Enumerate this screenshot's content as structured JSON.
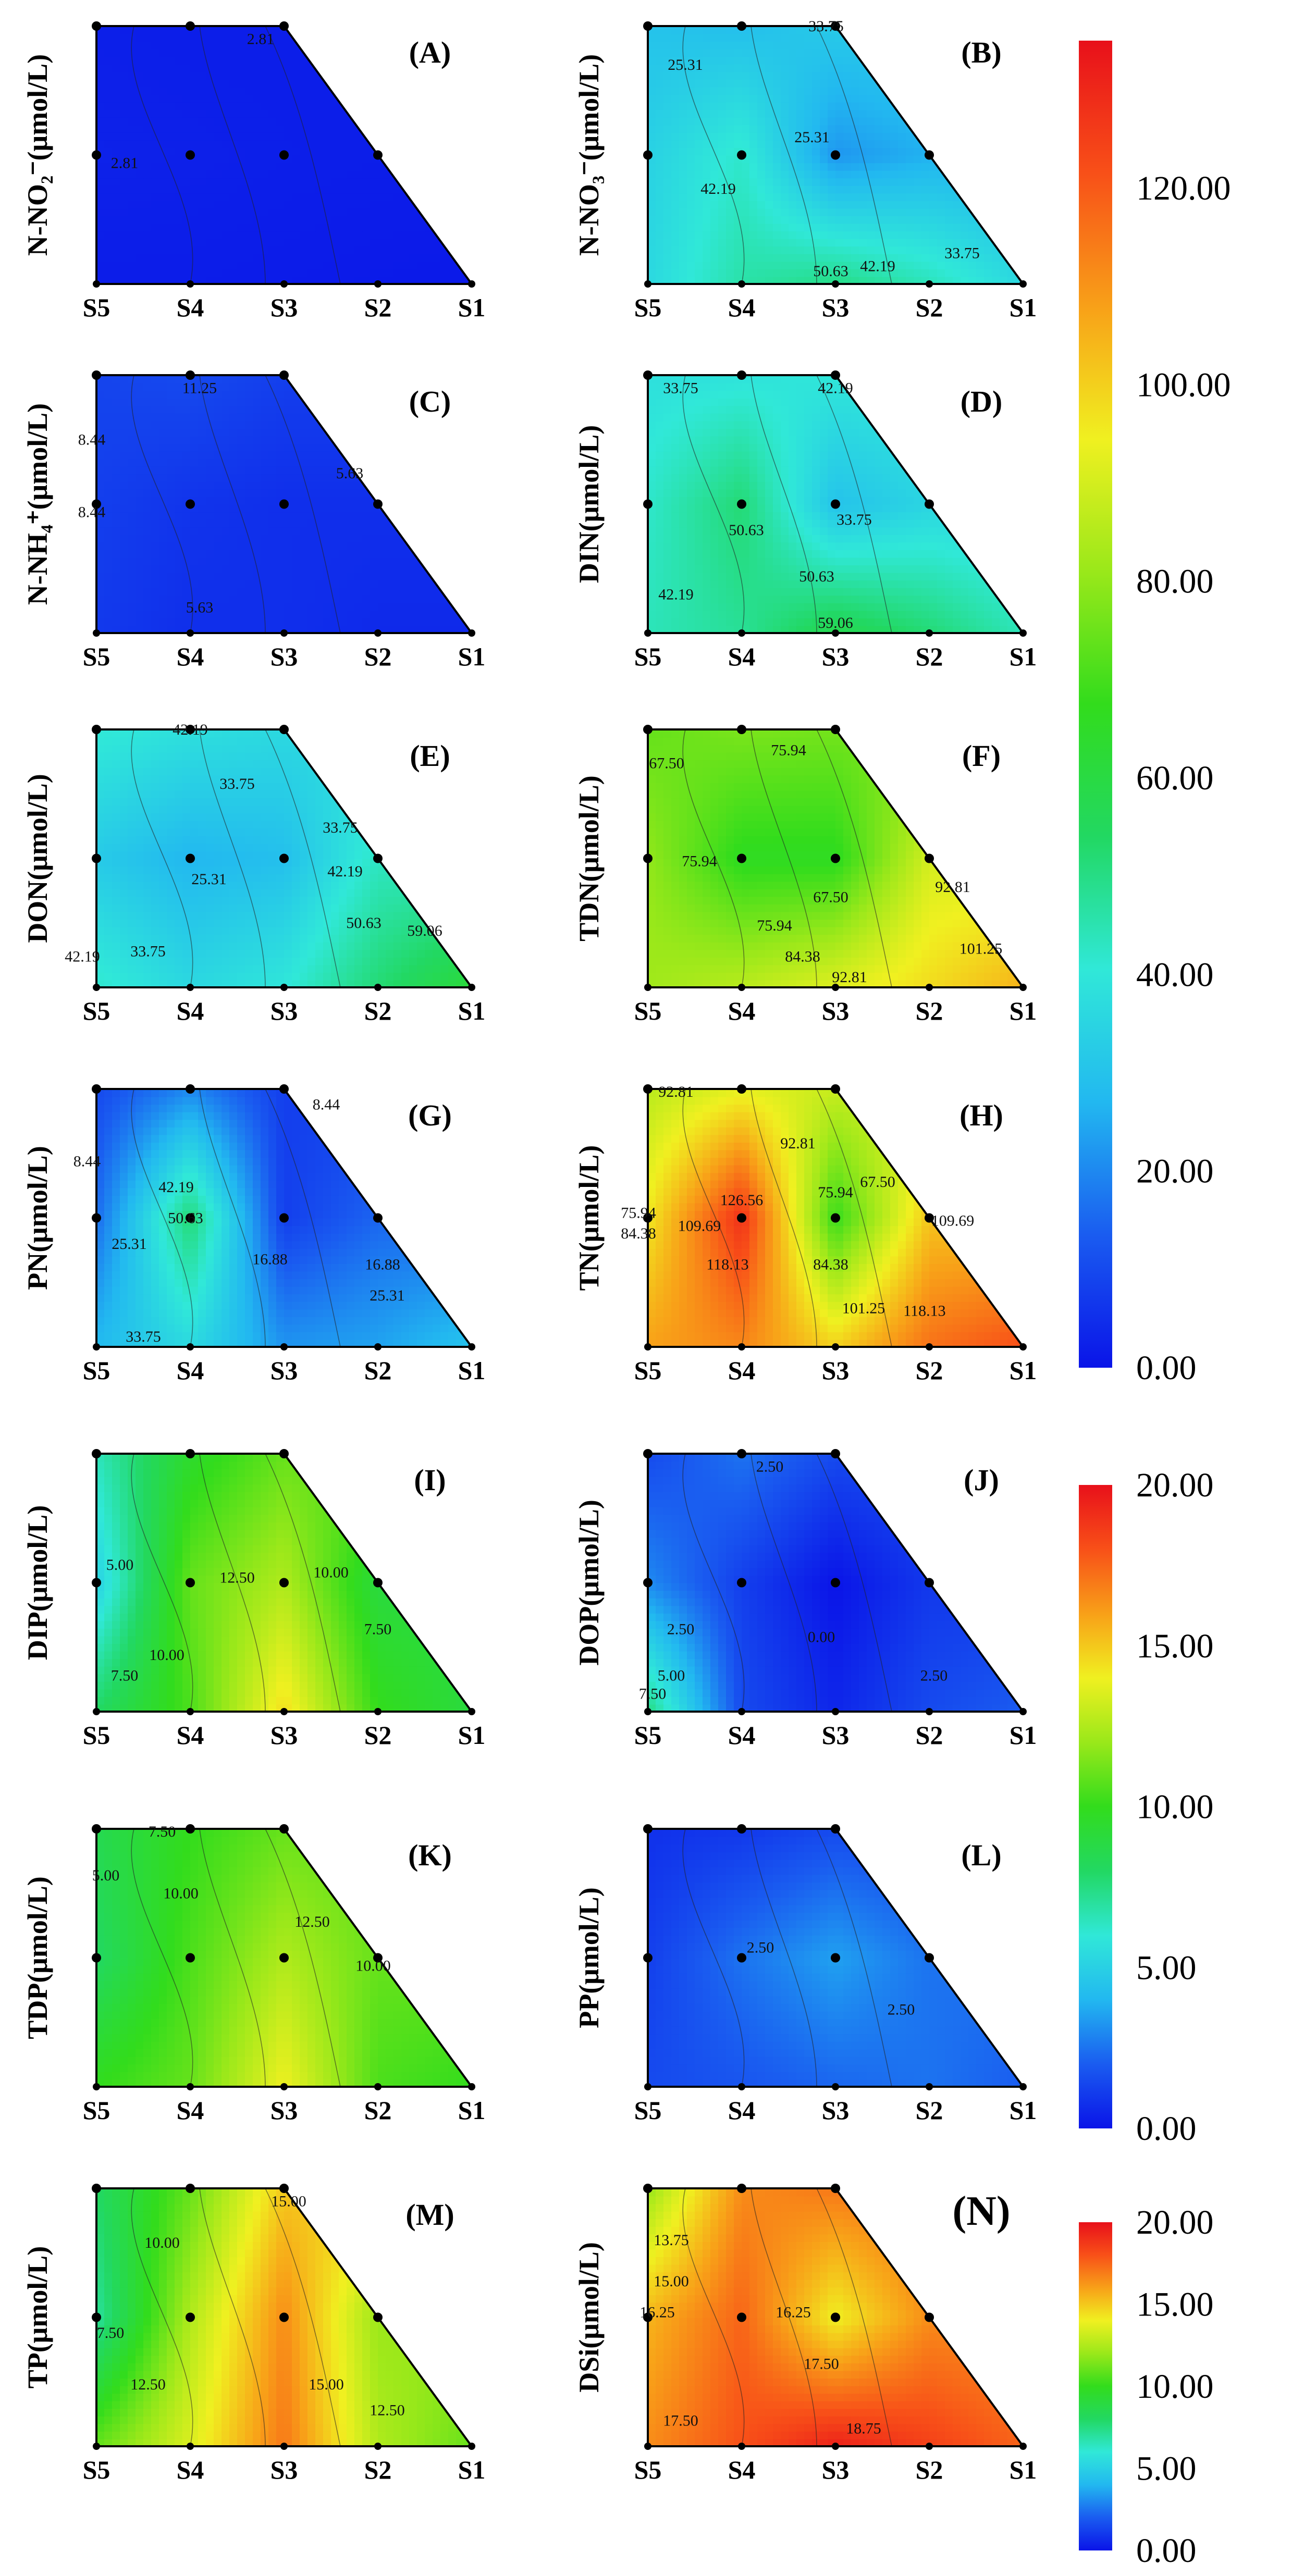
{
  "figure": {
    "stations": [
      "S5",
      "S4",
      "S3",
      "S2",
      "S1"
    ],
    "sample_points": [
      [
        0,
        1
      ],
      [
        1,
        1
      ],
      [
        2,
        1
      ],
      [
        0,
        0.5
      ],
      [
        1,
        0.5
      ],
      [
        2,
        0.5
      ],
      [
        3,
        0.5
      ]
    ],
    "colorscale": [
      "#0a14e8",
      "#1a5cf0",
      "#22b8f0",
      "#30e8d8",
      "#22d862",
      "#32dc1c",
      "#9ae81a",
      "#f0f020",
      "#f8a018",
      "#f85018",
      "#e8101a"
    ]
  },
  "colorbars": [
    {
      "id": "nitrogen",
      "min": 0,
      "max": 135,
      "ticks": [
        "0.00",
        "20.00",
        "40.00",
        "60.00",
        "80.00",
        "100.00",
        "120.00"
      ]
    },
    {
      "id": "phosphorus",
      "min": 0,
      "max": 20,
      "ticks": [
        "0.00",
        "5.00",
        "10.00",
        "15.00",
        "20.00"
      ]
    },
    {
      "id": "silicate",
      "min": 0,
      "max": 20,
      "ticks": [
        "0.00",
        "5.00",
        "10.00",
        "15.00",
        "20.00"
      ]
    }
  ],
  "chart_data": [
    {
      "type": "heatmap",
      "panel": "(A)",
      "ylabel": "N-NO₂⁻(μmol/L)",
      "xticks": [
        "S5",
        "S4",
        "S3",
        "S2",
        "S1"
      ],
      "colorbar": "nitrogen",
      "top_values": [
        2.0,
        1.8,
        1.8
      ],
      "mid_values": [
        2.6,
        2.3,
        2.0,
        1.8
      ],
      "bottom_values": [
        1.6,
        1.6,
        1.4,
        1.2,
        1.0
      ],
      "contour_labels": [
        {
          "text": "2.81",
          "at": [
            1.75,
            0.93
          ]
        },
        {
          "text": "2.81",
          "at": [
            0.3,
            0.45
          ]
        }
      ]
    },
    {
      "type": "heatmap",
      "panel": "(B)",
      "ylabel": "N-NO₃⁻(μmol/L)",
      "xticks": [
        "S5",
        "S4",
        "S3",
        "S2",
        "S1"
      ],
      "colorbar": "nitrogen",
      "top_values": [
        30,
        29,
        32
      ],
      "mid_values": [
        34,
        42,
        22,
        26
      ],
      "bottom_values": [
        36,
        46,
        50,
        44,
        36
      ],
      "contour_labels": [
        {
          "text": "25.31",
          "at": [
            0.4,
            0.83
          ]
        },
        {
          "text": "33.75",
          "at": [
            1.9,
            0.98
          ]
        },
        {
          "text": "25.31",
          "at": [
            1.75,
            0.55
          ]
        },
        {
          "text": "42.19",
          "at": [
            0.75,
            0.35
          ]
        },
        {
          "text": "50.63",
          "at": [
            1.95,
            0.03
          ]
        },
        {
          "text": "42.19",
          "at": [
            2.45,
            0.05
          ]
        },
        {
          "text": "33.75",
          "at": [
            3.35,
            0.1
          ]
        }
      ]
    },
    {
      "type": "heatmap",
      "panel": "(C)",
      "ylabel": "N-NH₄⁺(μmol/L)",
      "xticks": [
        "S5",
        "S4",
        "S3",
        "S2",
        "S1"
      ],
      "colorbar": "nitrogen",
      "top_values": [
        9,
        10,
        8
      ],
      "mid_values": [
        8,
        6,
        5,
        5
      ],
      "bottom_values": [
        7,
        5,
        5,
        4,
        4
      ],
      "contour_labels": [
        {
          "text": "8.44",
          "at": [
            -0.05,
            0.73
          ]
        },
        {
          "text": "11.25",
          "at": [
            1.1,
            0.93
          ]
        },
        {
          "text": "8.44",
          "at": [
            -0.05,
            0.45
          ]
        },
        {
          "text": "5.63",
          "at": [
            2.7,
            0.6
          ]
        },
        {
          "text": "5.63",
          "at": [
            1.1,
            0.08
          ]
        }
      ]
    },
    {
      "type": "heatmap",
      "panel": "(D)",
      "ylabel": "DIN(μmol/L)",
      "xticks": [
        "S5",
        "S4",
        "S3",
        "S2",
        "S1"
      ],
      "colorbar": "nitrogen",
      "top_values": [
        38,
        39,
        40
      ],
      "mid_values": [
        42,
        52,
        30,
        35
      ],
      "bottom_values": [
        44,
        48,
        58,
        52,
        44
      ],
      "contour_labels": [
        {
          "text": "33.75",
          "at": [
            0.35,
            0.93
          ]
        },
        {
          "text": "42.19",
          "at": [
            2.0,
            0.93
          ]
        },
        {
          "text": "50.63",
          "at": [
            1.05,
            0.38
          ]
        },
        {
          "text": "33.75",
          "at": [
            2.2,
            0.42
          ]
        },
        {
          "text": "42.19",
          "at": [
            0.3,
            0.13
          ]
        },
        {
          "text": "50.63",
          "at": [
            1.8,
            0.2
          ]
        },
        {
          "text": "59.06",
          "at": [
            2.0,
            0.02
          ]
        }
      ]
    },
    {
      "type": "heatmap",
      "panel": "(E)",
      "ylabel": "DON(μmol/L)",
      "xticks": [
        "S5",
        "S4",
        "S3",
        "S2",
        "S1"
      ],
      "colorbar": "nitrogen",
      "top_values": [
        41,
        38,
        36
      ],
      "mid_values": [
        32,
        27,
        29,
        43
      ],
      "bottom_values": [
        42,
        36,
        40,
        52,
        62
      ],
      "contour_labels": [
        {
          "text": "42.19",
          "at": [
            1.0,
            0.98
          ]
        },
        {
          "text": "33.75",
          "at": [
            1.5,
            0.77
          ]
        },
        {
          "text": "33.75",
          "at": [
            2.6,
            0.6
          ]
        },
        {
          "text": "42.19",
          "at": [
            2.65,
            0.43
          ]
        },
        {
          "text": "25.31",
          "at": [
            1.2,
            0.4
          ]
        },
        {
          "text": "50.63",
          "at": [
            2.85,
            0.23
          ]
        },
        {
          "text": "59.06",
          "at": [
            3.5,
            0.2
          ]
        },
        {
          "text": "42.19",
          "at": [
            -0.15,
            0.1
          ]
        },
        {
          "text": "33.75",
          "at": [
            0.55,
            0.12
          ]
        }
      ]
    },
    {
      "type": "heatmap",
      "panel": "(F)",
      "ylabel": "TDN(μmol/L)",
      "xticks": [
        "S5",
        "S4",
        "S3",
        "S2",
        "S1"
      ],
      "colorbar": "nitrogen",
      "top_values": [
        74,
        77,
        76
      ],
      "mid_values": [
        80,
        66,
        66,
        90
      ],
      "bottom_values": [
        82,
        86,
        92,
        98,
        105
      ],
      "contour_labels": [
        {
          "text": "67.50",
          "at": [
            0.2,
            0.85
          ]
        },
        {
          "text": "75.94",
          "at": [
            1.5,
            0.9
          ]
        },
        {
          "text": "75.94",
          "at": [
            0.55,
            0.47
          ]
        },
        {
          "text": "67.50",
          "at": [
            1.95,
            0.33
          ]
        },
        {
          "text": "92.81",
          "at": [
            3.25,
            0.37
          ]
        },
        {
          "text": "75.94",
          "at": [
            1.35,
            0.22
          ]
        },
        {
          "text": "84.38",
          "at": [
            1.65,
            0.1
          ]
        },
        {
          "text": "92.81",
          "at": [
            2.15,
            0.02
          ]
        },
        {
          "text": "101.25",
          "at": [
            3.55,
            0.13
          ]
        }
      ]
    },
    {
      "type": "heatmap",
      "panel": "(G)",
      "ylabel": "PN(μmol/L)",
      "xticks": [
        "S5",
        "S4",
        "S3",
        "S2",
        "S1"
      ],
      "colorbar": "nitrogen",
      "top_values": [
        10,
        20,
        8
      ],
      "mid_values": [
        16,
        52,
        8,
        15
      ],
      "bottom_values": [
        28,
        36,
        22,
        24,
        30
      ],
      "contour_labels": [
        {
          "text": "8.44",
          "at": [
            2.45,
            0.92
          ]
        },
        {
          "text": "8.44",
          "at": [
            -0.1,
            0.7
          ]
        },
        {
          "text": "42.19",
          "at": [
            0.85,
            0.6
          ]
        },
        {
          "text": "50.63",
          "at": [
            0.95,
            0.48
          ]
        },
        {
          "text": "25.31",
          "at": [
            0.35,
            0.38
          ]
        },
        {
          "text": "16.88",
          "at": [
            1.85,
            0.32
          ]
        },
        {
          "text": "16.88",
          "at": [
            3.05,
            0.3
          ]
        },
        {
          "text": "25.31",
          "at": [
            3.1,
            0.18
          ]
        },
        {
          "text": "33.75",
          "at": [
            0.5,
            0.02
          ]
        }
      ]
    },
    {
      "type": "heatmap",
      "panel": "(H)",
      "ylabel": "TN(μmol/L)",
      "xticks": [
        "S5",
        "S4",
        "S3",
        "S2",
        "S1"
      ],
      "colorbar": "nitrogen",
      "top_values": [
        86,
        93,
        88
      ],
      "mid_values": [
        96,
        128,
        68,
        102
      ],
      "bottom_values": [
        108,
        112,
        100,
        116,
        122
      ],
      "contour_labels": [
        {
          "text": "92.81",
          "at": [
            0.3,
            0.97
          ]
        },
        {
          "text": "92.81",
          "at": [
            1.6,
            0.77
          ]
        },
        {
          "text": "67.50",
          "at": [
            2.45,
            0.62
          ]
        },
        {
          "text": "75.94",
          "at": [
            2.0,
            0.58
          ]
        },
        {
          "text": "126.56",
          "at": [
            1.0,
            0.55
          ]
        },
        {
          "text": "75.94",
          "at": [
            -0.1,
            0.5
          ]
        },
        {
          "text": "109.69",
          "at": [
            0.55,
            0.45
          ]
        },
        {
          "text": "84.38",
          "at": [
            -0.1,
            0.42
          ]
        },
        {
          "text": "118.13",
          "at": [
            0.85,
            0.3
          ]
        },
        {
          "text": "84.38",
          "at": [
            1.95,
            0.3
          ]
        },
        {
          "text": "109.69",
          "at": [
            3.25,
            0.47
          ]
        },
        {
          "text": "101.25",
          "at": [
            2.3,
            0.13
          ]
        },
        {
          "text": "118.13",
          "at": [
            2.95,
            0.12
          ]
        }
      ]
    },
    {
      "type": "heatmap",
      "panel": "(I)",
      "ylabel": "DIP(μmol/L)",
      "xticks": [
        "S5",
        "S4",
        "S3",
        "S2",
        "S1"
      ],
      "colorbar": "phosphorus",
      "top_values": [
        6.5,
        9.5,
        11.0
      ],
      "mid_values": [
        5.0,
        11.0,
        12.5,
        9.0
      ],
      "bottom_values": [
        8.0,
        10.5,
        14.5,
        10.0,
        9.0
      ],
      "contour_labels": [
        {
          "text": "5.00",
          "at": [
            0.25,
            0.55
          ]
        },
        {
          "text": "12.50",
          "at": [
            1.5,
            0.5
          ]
        },
        {
          "text": "10.00",
          "at": [
            2.5,
            0.52
          ]
        },
        {
          "text": "7.50",
          "at": [
            3.0,
            0.3
          ]
        },
        {
          "text": "10.00",
          "at": [
            0.75,
            0.2
          ]
        },
        {
          "text": "7.50",
          "at": [
            0.3,
            0.12
          ]
        }
      ]
    },
    {
      "type": "heatmap",
      "panel": "(J)",
      "ylabel": "DOP(μmol/L)",
      "xticks": [
        "S5",
        "S4",
        "S3",
        "S2",
        "S1"
      ],
      "colorbar": "phosphorus",
      "top_values": [
        1.5,
        2.5,
        1.5
      ],
      "mid_values": [
        3.0,
        1.2,
        0.0,
        1.0
      ],
      "bottom_values": [
        7.5,
        1.5,
        0.5,
        1.5,
        2.0
      ],
      "contour_labels": [
        {
          "text": "2.50",
          "at": [
            1.3,
            0.93
          ]
        },
        {
          "text": "2.50",
          "at": [
            0.35,
            0.3
          ]
        },
        {
          "text": "0.00",
          "at": [
            1.85,
            0.27
          ]
        },
        {
          "text": "5.00",
          "at": [
            0.25,
            0.12
          ]
        },
        {
          "text": "7.50",
          "at": [
            0.05,
            0.05
          ]
        },
        {
          "text": "2.50",
          "at": [
            3.05,
            0.12
          ]
        }
      ]
    },
    {
      "type": "heatmap",
      "panel": "(K)",
      "ylabel": "TDP(μmol/L)",
      "xticks": [
        "S5",
        "S4",
        "S3",
        "S2",
        "S1"
      ],
      "colorbar": "phosphorus",
      "top_values": [
        8.5,
        10.0,
        11.0
      ],
      "mid_values": [
        8.0,
        10.5,
        12.5,
        11.0
      ],
      "bottom_values": [
        10.0,
        11.0,
        14.0,
        10.5,
        10.0
      ],
      "contour_labels": [
        {
          "text": "7.50",
          "at": [
            0.7,
            0.97
          ]
        },
        {
          "text": "5.00",
          "at": [
            0.1,
            0.8
          ]
        },
        {
          "text": "10.00",
          "at": [
            0.9,
            0.73
          ]
        },
        {
          "text": "12.50",
          "at": [
            2.3,
            0.62
          ]
        },
        {
          "text": "10.00",
          "at": [
            2.95,
            0.45
          ]
        }
      ]
    },
    {
      "type": "heatmap",
      "panel": "(L)",
      "ylabel": "PP(μmol/L)",
      "xticks": [
        "S5",
        "S4",
        "S3",
        "S2",
        "S1"
      ],
      "colorbar": "phosphorus",
      "top_values": [
        0.8,
        1.0,
        1.5
      ],
      "mid_values": [
        1.2,
        2.5,
        3.5,
        2.5
      ],
      "bottom_values": [
        1.5,
        1.8,
        2.2,
        2.5,
        2.0
      ],
      "contour_labels": [
        {
          "text": "2.50",
          "at": [
            1.2,
            0.52
          ]
        },
        {
          "text": "2.50",
          "at": [
            2.7,
            0.28
          ]
        }
      ]
    },
    {
      "type": "heatmap",
      "panel": "(M)",
      "ylabel": "TP(μmol/L)",
      "xticks": [
        "S5",
        "S4",
        "S3",
        "S2",
        "S1"
      ],
      "colorbar": "phosphorus",
      "top_values": [
        8.0,
        11.0,
        15.0
      ],
      "mid_values": [
        7.0,
        12.5,
        16.5,
        12.0
      ],
      "bottom_values": [
        11.0,
        13.5,
        17.0,
        12.5,
        11.0
      ],
      "contour_labels": [
        {
          "text": "15.00",
          "at": [
            2.05,
            0.93
          ]
        },
        {
          "text": "10.00",
          "at": [
            0.7,
            0.77
          ]
        },
        {
          "text": "7.50",
          "at": [
            0.15,
            0.42
          ]
        },
        {
          "text": "12.50",
          "at": [
            0.55,
            0.22
          ]
        },
        {
          "text": "15.00",
          "at": [
            2.45,
            0.22
          ]
        },
        {
          "text": "12.50",
          "at": [
            3.1,
            0.12
          ]
        }
      ]
    },
    {
      "type": "heatmap",
      "panel": "(N)",
      "ylabel": "DSi(μmol/L)",
      "xticks": [
        "S5",
        "S4",
        "S3",
        "S2",
        "S1"
      ],
      "colorbar": "silicate",
      "top_values": [
        12.0,
        16.5,
        17.0
      ],
      "mid_values": [
        15.5,
        17.5,
        14.0,
        16.5
      ],
      "bottom_values": [
        16.5,
        18.0,
        19.5,
        18.5,
        17.5
      ],
      "contour_labels": [
        {
          "text": "13.75",
          "at": [
            0.25,
            0.78
          ]
        },
        {
          "text": "15.00",
          "at": [
            0.25,
            0.62
          ]
        },
        {
          "text": "16.25",
          "at": [
            0.1,
            0.5
          ]
        },
        {
          "text": "16.25",
          "at": [
            1.55,
            0.5
          ]
        },
        {
          "text": "17.50",
          "at": [
            1.85,
            0.3
          ]
        },
        {
          "text": "17.50",
          "at": [
            0.35,
            0.08
          ]
        },
        {
          "text": "18.75",
          "at": [
            2.3,
            0.05
          ]
        }
      ]
    }
  ]
}
